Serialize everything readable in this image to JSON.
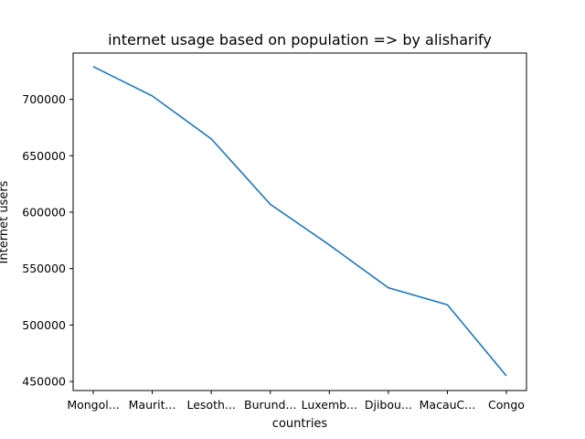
{
  "chart_data": {
    "type": "line",
    "title": "internet usage based on population => by alisharify",
    "xlabel": "countries",
    "ylabel": "Internet users",
    "categories": [
      "Mongol...",
      "Maurit...",
      "Lesoth...",
      "Burund...",
      "Luxemb...",
      "Djibou...",
      "MacauC...",
      "Congo"
    ],
    "series": [
      {
        "values": [
          729000,
          703000,
          665000,
          607000,
          571000,
          533000,
          518000,
          455000
        ]
      }
    ],
    "ylim": [
      442000,
      741000
    ],
    "yticks": [
      450000,
      500000,
      550000,
      600000,
      650000,
      700000
    ],
    "line_color": "#1f77b4",
    "grid": false,
    "legend": "none"
  }
}
